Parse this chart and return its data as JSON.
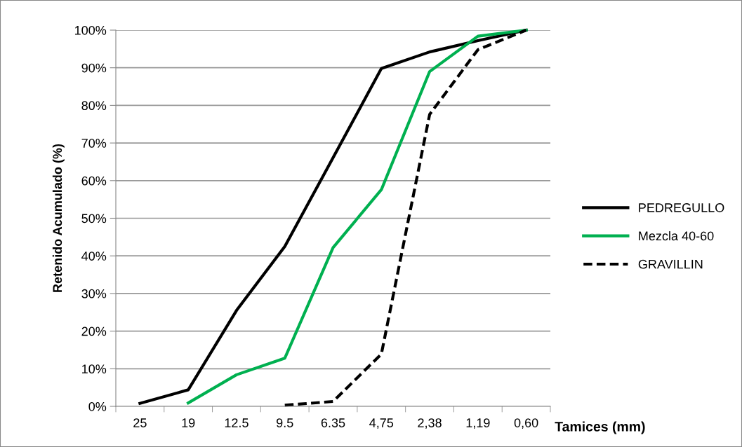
{
  "chart_data": {
    "type": "line",
    "xlabel": "Tamices (mm)",
    "ylabel": "Retenido Acumulado (%)",
    "categories": [
      "25",
      "19",
      "12.5",
      "9.5",
      "6.35",
      "4,75",
      "2,38",
      "1,19",
      "0,60"
    ],
    "series": [
      {
        "name": "PEDREGULLO",
        "color": "#000000",
        "line_style": "solid",
        "values": [
          0.8,
          4.4,
          25.5,
          42.5,
          66.1,
          89.8,
          94.2,
          97.2,
          100
        ]
      },
      {
        "name": "Mezcla 40-60",
        "color": "#00b050",
        "line_style": "solid",
        "values": [
          null,
          0.9,
          8.4,
          12.8,
          42.2,
          57.6,
          89.0,
          98.4,
          100
        ]
      },
      {
        "name": "GRAVILLIN",
        "color": "#000000",
        "line_style": "dashed",
        "values": [
          null,
          null,
          null,
          0.3,
          1.3,
          13.9,
          77.6,
          94.8,
          100
        ]
      }
    ],
    "ylim": [
      0,
      100
    ],
    "yticks": [
      {
        "value": 0,
        "label": "0%"
      },
      {
        "value": 10,
        "label": "10%"
      },
      {
        "value": 20,
        "label": "20%"
      },
      {
        "value": 30,
        "label": "30%"
      },
      {
        "value": 40,
        "label": "40%"
      },
      {
        "value": 50,
        "label": "50%"
      },
      {
        "value": 60,
        "label": "60%"
      },
      {
        "value": 70,
        "label": "70%"
      },
      {
        "value": 80,
        "label": "80%"
      },
      {
        "value": 90,
        "label": "90%"
      },
      {
        "value": 100,
        "label": "100%"
      }
    ],
    "grid": "y",
    "legend": "right",
    "marker": "none"
  }
}
